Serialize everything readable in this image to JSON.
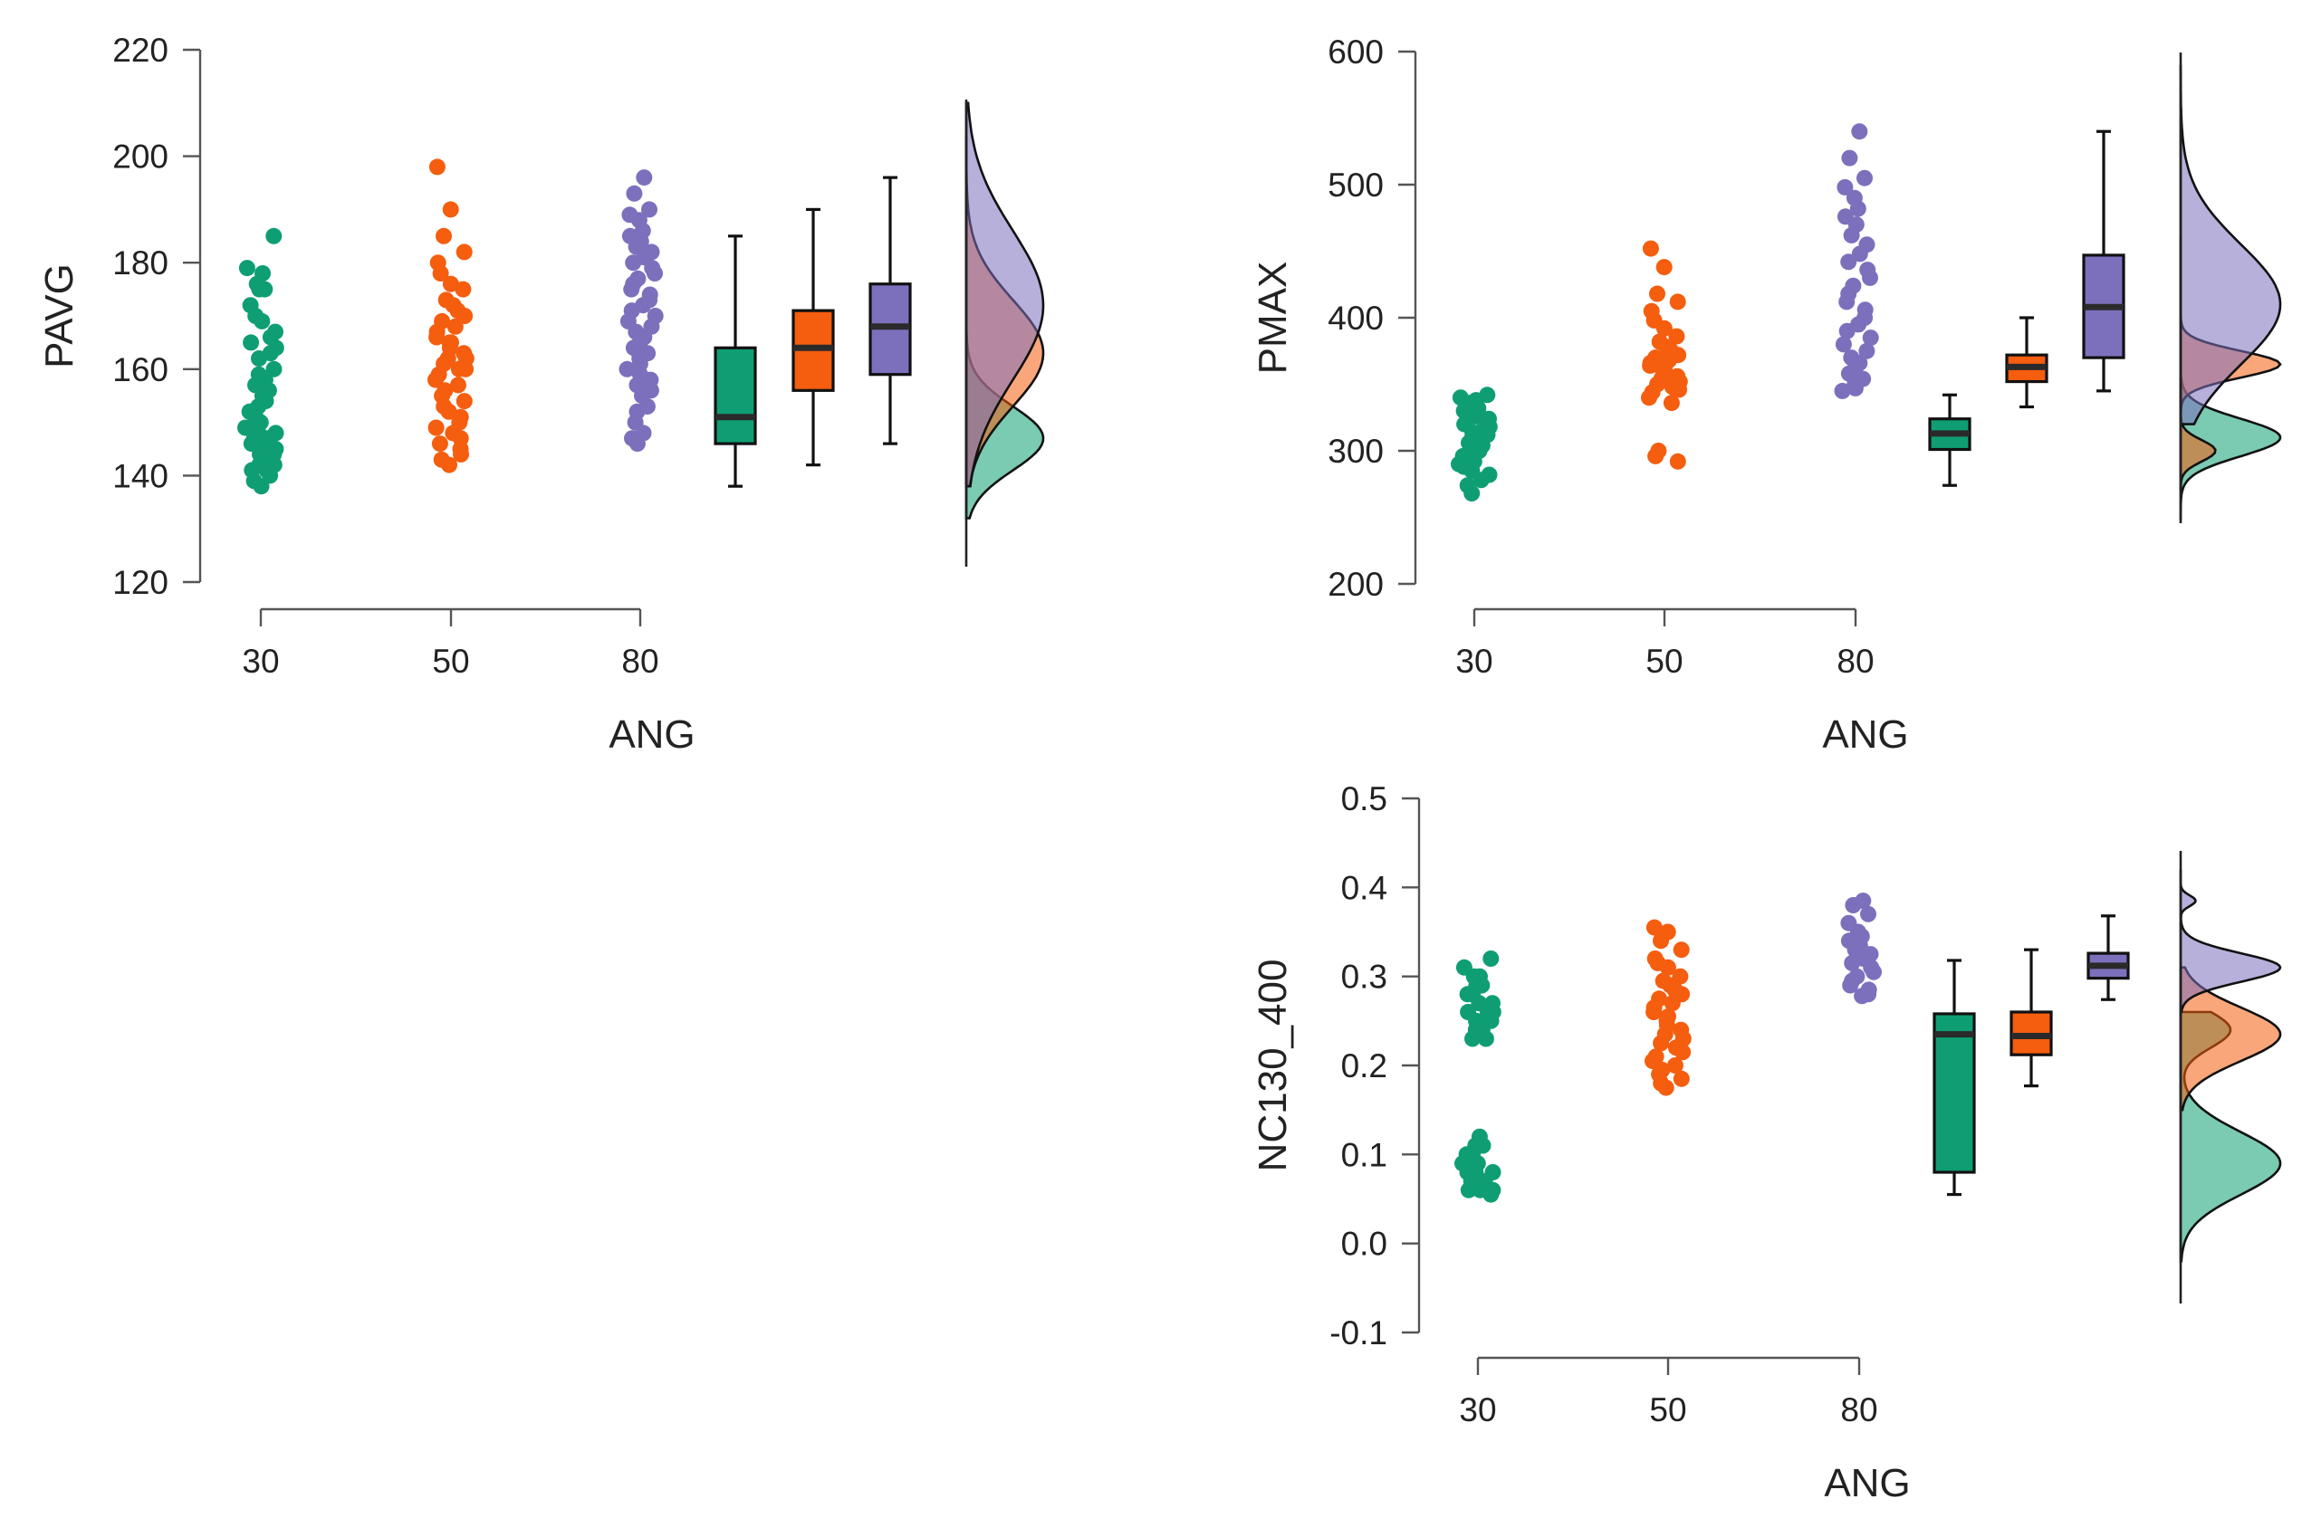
{
  "colors": {
    "30": "#0f9e73",
    "50": "#f55d0f",
    "80": "#7c70bd"
  },
  "groups": [
    "30",
    "50",
    "80"
  ],
  "chart_data": [
    {
      "id": "pavg",
      "type": "raincloud",
      "ylabel": "PAVG",
      "xlabel": "ANG",
      "ylim": [
        120,
        220
      ],
      "yticks": [
        120,
        140,
        160,
        180,
        200,
        220
      ],
      "ytick_labels": [
        "120",
        "140",
        "160",
        "180",
        "200",
        "220"
      ],
      "categories": [
        "30",
        "50",
        "80"
      ],
      "series": [
        {
          "name": "30",
          "points": [
            185,
            179,
            178,
            176,
            175,
            175,
            172,
            170,
            169,
            167,
            166,
            165,
            164,
            163,
            162,
            160,
            159,
            158,
            157,
            156,
            155,
            154,
            153,
            152,
            151,
            150,
            149,
            149,
            148,
            148,
            147,
            147,
            146,
            146,
            145,
            145,
            144,
            144,
            143,
            143,
            142,
            142,
            141,
            141,
            140,
            139,
            138
          ],
          "box": {
            "min": 138,
            "q1": 146,
            "median": 151,
            "q3": 164,
            "max": 185
          }
        },
        {
          "name": "50",
          "points": [
            198,
            190,
            185,
            182,
            180,
            178,
            176,
            175,
            173,
            172,
            171,
            170,
            169,
            168,
            167,
            166,
            165,
            165,
            164,
            163,
            162,
            162,
            161,
            160,
            160,
            159,
            158,
            157,
            156,
            155,
            154,
            153,
            152,
            151,
            150,
            149,
            148,
            147,
            146,
            145,
            144,
            143,
            142
          ],
          "box": {
            "min": 142,
            "q1": 156,
            "median": 164,
            "q3": 171,
            "max": 190
          }
        },
        {
          "name": "80",
          "points": [
            196,
            193,
            190,
            189,
            188,
            186,
            185,
            184,
            183,
            182,
            181,
            180,
            179,
            178,
            177,
            176,
            175,
            174,
            173,
            172,
            171,
            170,
            169,
            168,
            167,
            166,
            165,
            164,
            163,
            162,
            161,
            160,
            159,
            158,
            157,
            156,
            155,
            153,
            152,
            150,
            148,
            147,
            146
          ],
          "box": {
            "min": 146,
            "q1": 159,
            "median": 168,
            "q3": 176,
            "max": 196
          }
        }
      ],
      "densities": [
        {
          "name": "30",
          "range": [
            132,
            190
          ],
          "stats": [
            147,
            6
          ]
        },
        {
          "name": "50",
          "range": [
            138,
            204
          ],
          "stats": [
            163,
            10
          ]
        },
        {
          "name": "80",
          "range": [
            138,
            210
          ],
          "stats": [
            172,
            14
          ]
        }
      ]
    },
    {
      "id": "pmax",
      "type": "raincloud",
      "ylabel": "PMAX",
      "xlabel": "ANG",
      "ylim": [
        200,
        600
      ],
      "yticks": [
        200,
        300,
        400,
        500,
        600
      ],
      "ytick_labels": [
        "200",
        "300",
        "400",
        "500",
        "600"
      ],
      "categories": [
        "30",
        "50",
        "80"
      ],
      "series": [
        {
          "name": "30",
          "points": [
            342,
            340,
            338,
            336,
            334,
            332,
            330,
            328,
            326,
            324,
            322,
            320,
            318,
            316,
            314,
            312,
            310,
            308,
            306,
            304,
            302,
            300,
            298,
            296,
            294,
            292,
            290,
            288,
            285,
            282,
            278,
            274,
            268
          ],
          "box": {
            "min": 274,
            "q1": 301,
            "median": 313,
            "q3": 324,
            "max": 342
          }
        },
        {
          "name": "50",
          "points": [
            452,
            438,
            418,
            412,
            405,
            398,
            392,
            386,
            382,
            378,
            375,
            372,
            370,
            368,
            366,
            364,
            362,
            360,
            358,
            356,
            354,
            352,
            350,
            348,
            346,
            344,
            340,
            336,
            300,
            296,
            292
          ],
          "box": {
            "min": 333,
            "q1": 352,
            "median": 363,
            "q3": 372,
            "max": 400
          }
        },
        {
          "name": "80",
          "points": [
            540,
            520,
            505,
            498,
            490,
            482,
            476,
            470,
            462,
            455,
            448,
            442,
            436,
            430,
            424,
            418,
            412,
            406,
            400,
            395,
            390,
            385,
            380,
            375,
            370,
            366,
            362,
            358,
            354,
            350,
            347,
            345
          ],
          "box": {
            "min": 345,
            "q1": 370,
            "median": 408,
            "q3": 447,
            "max": 540
          }
        }
      ],
      "densities": [
        {
          "name": "30",
          "range": [
            248,
            355
          ],
          "stats": [
            310,
            14
          ]
        },
        {
          "name": "50",
          "range": [
            270,
            460
          ],
          "stats": [
            365,
            10,
            300,
            8,
            0.35
          ]
        },
        {
          "name": "80",
          "range": [
            320,
            590
          ],
          "stats": [
            410,
            45
          ]
        }
      ]
    },
    {
      "id": "nc130",
      "type": "raincloud",
      "ylabel": "NC130_400",
      "xlabel": "ANG",
      "ylim": [
        -0.1,
        0.5
      ],
      "yticks": [
        -0.1,
        0.0,
        0.1,
        0.2,
        0.3,
        0.4,
        0.5
      ],
      "ytick_labels": [
        "-0.1",
        "0.0",
        "0.1",
        "0.2",
        "0.3",
        "0.4",
        "0.5"
      ],
      "categories": [
        "30",
        "50",
        "80"
      ],
      "series": [
        {
          "name": "30",
          "points": [
            0.32,
            0.31,
            0.3,
            0.3,
            0.29,
            0.29,
            0.28,
            0.28,
            0.27,
            0.27,
            0.26,
            0.26,
            0.26,
            0.25,
            0.25,
            0.25,
            0.24,
            0.24,
            0.23,
            0.23,
            0.12,
            0.11,
            0.11,
            0.1,
            0.1,
            0.09,
            0.09,
            0.08,
            0.08,
            0.08,
            0.07,
            0.07,
            0.07,
            0.06,
            0.06,
            0.06,
            0.055
          ],
          "box": {
            "min": 0.055,
            "q1": 0.08,
            "median": 0.235,
            "q3": 0.258,
            "max": 0.318
          }
        },
        {
          "name": "50",
          "points": [
            0.355,
            0.35,
            0.34,
            0.33,
            0.32,
            0.315,
            0.31,
            0.3,
            0.295,
            0.29,
            0.285,
            0.28,
            0.275,
            0.27,
            0.265,
            0.26,
            0.255,
            0.25,
            0.245,
            0.24,
            0.235,
            0.23,
            0.225,
            0.22,
            0.215,
            0.21,
            0.205,
            0.2,
            0.195,
            0.19,
            0.185,
            0.18,
            0.175
          ],
          "box": {
            "min": 0.177,
            "q1": 0.212,
            "median": 0.233,
            "q3": 0.26,
            "max": 0.33
          }
        },
        {
          "name": "80",
          "points": [
            0.385,
            0.38,
            0.37,
            0.36,
            0.35,
            0.345,
            0.34,
            0.335,
            0.33,
            0.325,
            0.32,
            0.315,
            0.31,
            0.305,
            0.3,
            0.295,
            0.29,
            0.285,
            0.28,
            0.278
          ],
          "box": {
            "min": 0.274,
            "q1": 0.298,
            "median": 0.312,
            "q3": 0.326,
            "max": 0.368
          }
        }
      ],
      "densities": [
        {
          "name": "30",
          "range": [
            -0.02,
            0.26
          ],
          "stats": [
            0.09,
            0.035,
            0.24,
            0.02,
            0.5
          ]
        },
        {
          "name": "50",
          "range": [
            0.15,
            0.31
          ],
          "stats": [
            0.235,
            0.03
          ]
        },
        {
          "name": "80",
          "range": [
            0.26,
            0.42
          ],
          "stats": [
            0.31,
            0.016,
            0.385,
            0.006,
            0.15
          ]
        }
      ]
    }
  ]
}
